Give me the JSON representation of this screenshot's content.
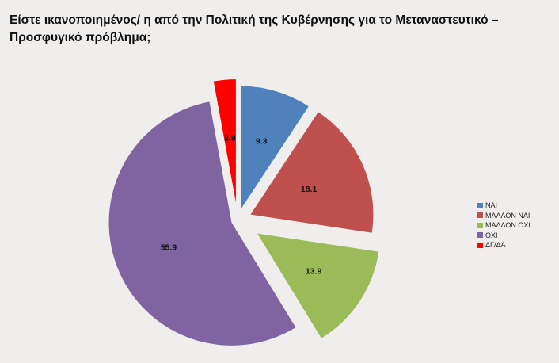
{
  "title": {
    "line1": "Είστε ικανοποιημένος/ η από την Πολιτική της Κυβέρνησης για το Μεταναστευτικό –",
    "line2": "Προσφυγικό  πρόβλημα;"
  },
  "chart_data": {
    "type": "pie",
    "categories": [
      "ΝΑΙ",
      "ΜΑΛΛΟΝ ΝΑΙ",
      "ΜΑΛΛΟΝ ΟΧΙ",
      "ΟΧΙ",
      "ΔΓ/ΔΑ"
    ],
    "values": [
      9.3,
      18.1,
      13.9,
      55.9,
      2.9
    ],
    "data_labels": [
      "9.3",
      "18.1",
      "13.9",
      "55.9",
      "2.9"
    ],
    "colors": [
      "#4f81bd",
      "#c0504d",
      "#9bbb59",
      "#8064a2",
      "#ff0000"
    ],
    "exploded": true,
    "legend_position": "right"
  }
}
